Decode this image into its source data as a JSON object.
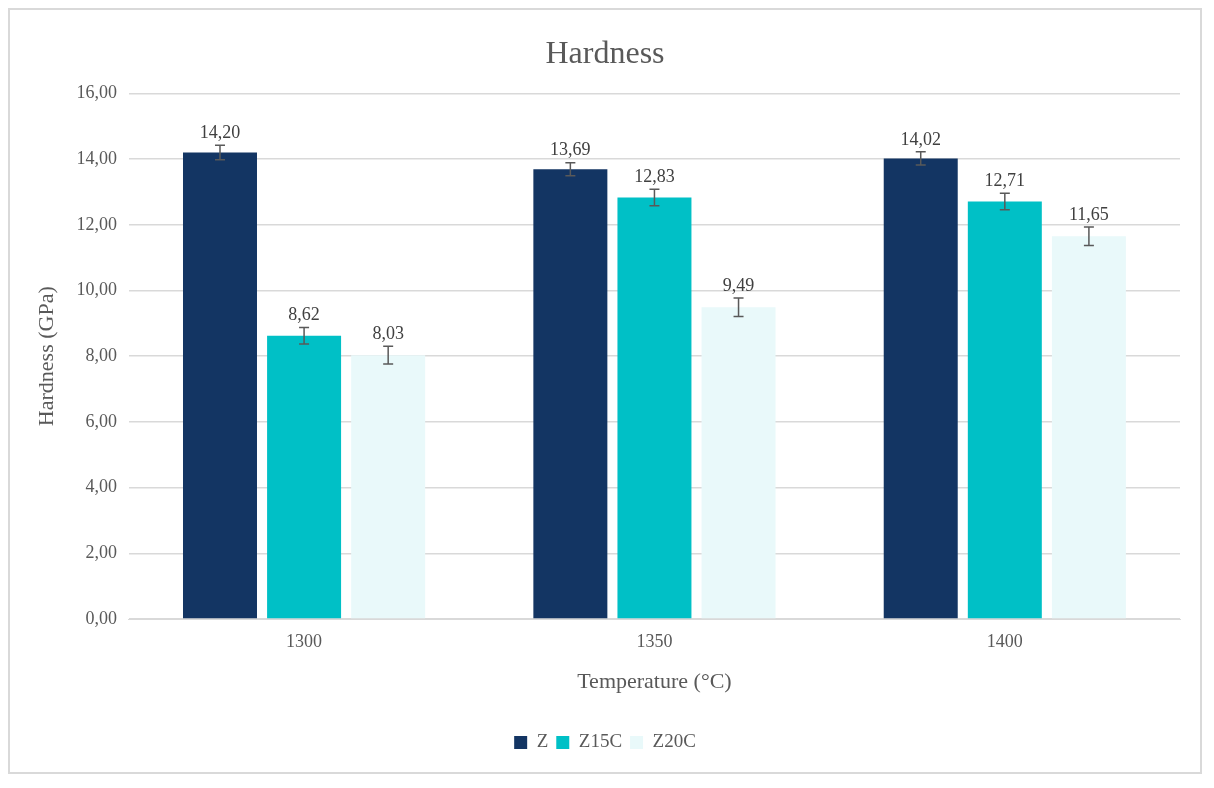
{
  "chart_data": {
    "type": "bar",
    "title": "Hardness",
    "xlabel": "Temperature (°C)",
    "ylabel": "Hardness (GPa)",
    "categories": [
      "1300",
      "1350",
      "1400"
    ],
    "series": [
      {
        "name": "Z",
        "color": "#133563",
        "values": [
          14.2,
          13.69,
          14.02
        ],
        "errors": [
          0.22,
          0.2,
          0.2
        ],
        "value_labels": [
          "14,20",
          "13,69",
          "14,02"
        ]
      },
      {
        "name": "Z15C",
        "color": "#00c0c6",
        "values": [
          8.62,
          12.83,
          12.71
        ],
        "errors": [
          0.25,
          0.25,
          0.25
        ],
        "value_labels": [
          "8,62",
          "12,83",
          "12,71"
        ]
      },
      {
        "name": "Z20C",
        "color": "#e9f9fa",
        "values": [
          8.03,
          9.49,
          11.65
        ],
        "errors": [
          0.27,
          0.28,
          0.28
        ],
        "value_labels": [
          "8,03",
          "9,49",
          "11,65"
        ]
      }
    ],
    "ylim": [
      0,
      16
    ],
    "yticks": [
      {
        "value": 0,
        "label": "0,00"
      },
      {
        "value": 2,
        "label": "2,00"
      },
      {
        "value": 4,
        "label": "4,00"
      },
      {
        "value": 6,
        "label": "6,00"
      },
      {
        "value": 8,
        "label": "8,00"
      },
      {
        "value": 10,
        "label": "10,00"
      },
      {
        "value": 12,
        "label": "12,00"
      },
      {
        "value": 14,
        "label": "14,00"
      },
      {
        "value": 16,
        "label": "16,00"
      }
    ],
    "grid": "y",
    "legend": "bottom"
  }
}
